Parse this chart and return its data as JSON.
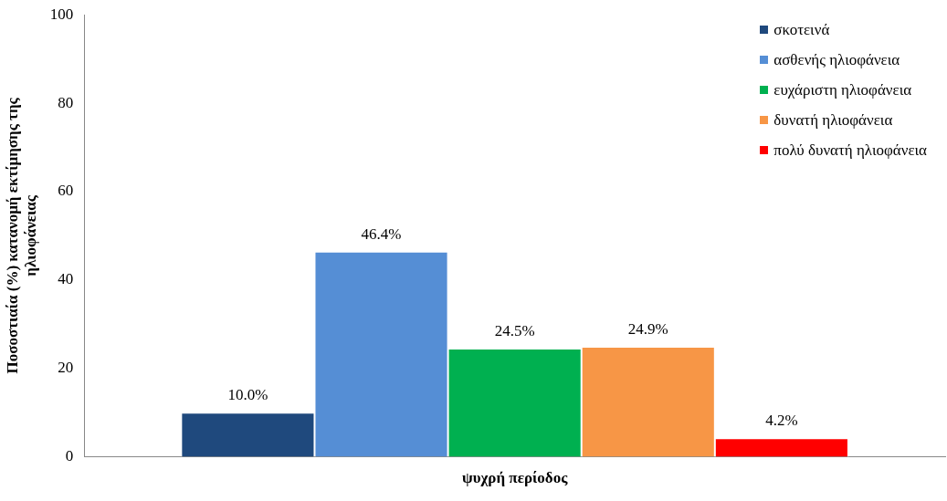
{
  "chart_data": {
    "type": "bar",
    "ylabel": "Ποσοστιαία (%) κατανομή εκτίμησης της ηλιοφάνειας",
    "categories": [
      "ψυχρή περίοδος"
    ],
    "series": [
      {
        "name": "σκοτεινά",
        "color": "#1f497d",
        "values": [
          10.0
        ],
        "value_labels": [
          "10.0%"
        ]
      },
      {
        "name": "ασθενής ηλιοφάνεια",
        "color": "#558ed5",
        "values": [
          46.4
        ],
        "value_labels": [
          "46.4%"
        ]
      },
      {
        "name": "ευχάριστη ηλιοφάνεια",
        "color": "#00b050",
        "values": [
          24.5
        ],
        "value_labels": [
          "24.5%"
        ]
      },
      {
        "name": "δυνατή ηλιοφάνεια",
        "color": "#f79646",
        "values": [
          24.9
        ],
        "value_labels": [
          "24.9%"
        ]
      },
      {
        "name": "πολύ δυνατή ηλιοφάνεια",
        "color": "#ff0000",
        "values": [
          4.2
        ],
        "value_labels": [
          "4.2%"
        ]
      }
    ],
    "ylim": [
      0,
      100
    ],
    "yticks": [
      0,
      20,
      40,
      60,
      80,
      100
    ],
    "grid": false,
    "legend": "top right"
  }
}
